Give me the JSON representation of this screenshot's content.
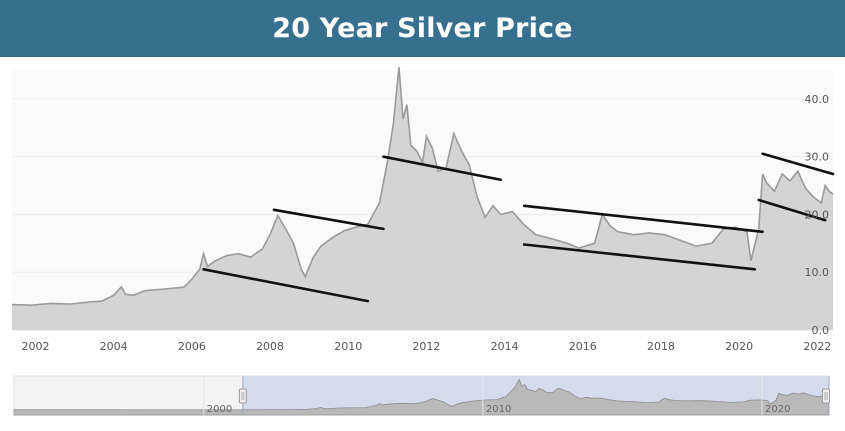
{
  "title": "20 Year Silver Price",
  "chart_data": {
    "type": "area",
    "title": "20 Year Silver Price",
    "xlabel": "",
    "ylabel": "",
    "xlim": [
      2001.4,
      2022.4
    ],
    "ylim": [
      0,
      45
    ],
    "y_ticks": [
      "0.0",
      "10.0",
      "20.0",
      "30.0",
      "40.0"
    ],
    "x_ticks": [
      "2002",
      "2004",
      "2006",
      "2008",
      "2010",
      "2012",
      "2014",
      "2016",
      "2018",
      "2020",
      "2022"
    ],
    "grid": true,
    "legend": "none",
    "series": [
      {
        "x": [
          2001.4,
          2001.9,
          2002.4,
          2002.9,
          2003.3,
          2003.7,
          2004.0,
          2004.2,
          2004.3,
          2004.5,
          2004.8,
          2005.3,
          2005.8,
          2006.0,
          2006.2,
          2006.3,
          2006.4,
          2006.6,
          2006.9,
          2007.2,
          2007.5,
          2007.8,
          2008.0,
          2008.2,
          2008.4,
          2008.6,
          2008.8,
          2008.9,
          2009.1,
          2009.3,
          2009.6,
          2009.9,
          2010.2,
          2010.5,
          2010.8,
          2011.0,
          2011.15,
          2011.3,
          2011.4,
          2011.5,
          2011.6,
          2011.75,
          2011.9,
          2012.0,
          2012.15,
          2012.3,
          2012.5,
          2012.7,
          2012.9,
          2013.1,
          2013.3,
          2013.5,
          2013.7,
          2013.9,
          2014.2,
          2014.5,
          2014.8,
          2015.2,
          2015.6,
          2015.9,
          2016.3,
          2016.5,
          2016.7,
          2016.9,
          2017.3,
          2017.7,
          2018.1,
          2018.5,
          2018.9,
          2019.3,
          2019.6,
          2019.9,
          2020.2,
          2020.3,
          2020.5,
          2020.6,
          2020.7,
          2020.9,
          2021.1,
          2021.3,
          2021.5,
          2021.7,
          2021.9,
          2022.1,
          2022.2,
          2022.3,
          2022.4
        ],
        "values": [
          4.4,
          4.3,
          4.6,
          4.5,
          4.8,
          5.0,
          6.0,
          7.5,
          6.2,
          6.0,
          6.8,
          7.1,
          7.4,
          8.8,
          10.5,
          13.2,
          11.0,
          12.0,
          12.9,
          13.2,
          12.6,
          14.0,
          16.5,
          19.8,
          17.5,
          15.0,
          10.5,
          9.2,
          12.5,
          14.5,
          16.0,
          17.2,
          17.8,
          18.3,
          22.0,
          29.0,
          35.5,
          45.5,
          36.5,
          39.0,
          32.0,
          31.0,
          29.0,
          33.5,
          31.5,
          27.5,
          28.0,
          34.0,
          31.0,
          28.5,
          23.0,
          19.5,
          21.5,
          20.0,
          20.5,
          18.2,
          16.5,
          15.8,
          15.0,
          14.2,
          15.0,
          20.0,
          18.0,
          17.0,
          16.5,
          16.8,
          16.5,
          15.5,
          14.5,
          15.0,
          17.5,
          17.8,
          17.0,
          12.0,
          17.5,
          27.0,
          25.5,
          24.0,
          27.0,
          25.8,
          27.5,
          24.5,
          23.0,
          22.0,
          25.0,
          24.0,
          23.5
        ]
      }
    ],
    "trend_lines": [
      [
        [
          2006.3,
          10.5
        ],
        [
          2010.5,
          5.0
        ]
      ],
      [
        [
          2008.1,
          20.8
        ],
        [
          2010.9,
          17.5
        ]
      ],
      [
        [
          2010.9,
          30.0
        ],
        [
          2013.9,
          26.0
        ]
      ],
      [
        [
          2014.5,
          21.5
        ],
        [
          2020.6,
          17.0
        ]
      ],
      [
        [
          2014.5,
          14.8
        ],
        [
          2020.4,
          10.5
        ]
      ],
      [
        [
          2020.5,
          22.5
        ],
        [
          2022.2,
          19.0
        ]
      ],
      [
        [
          2020.6,
          30.5
        ],
        [
          2022.4,
          27.0
        ]
      ]
    ],
    "navigator": {
      "x_ticks": [
        "2000",
        "2010",
        "2020"
      ],
      "range": [
        2001.4,
        2022.4
      ],
      "xlim": [
        1993.2,
        2022.4
      ]
    }
  }
}
